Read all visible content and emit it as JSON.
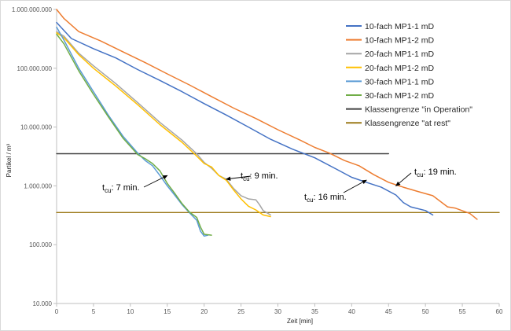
{
  "chart_data": {
    "type": "line",
    "xlabel": "Zeit [min]",
    "ylabel": "Partikel / m³",
    "xlim": [
      0,
      60
    ],
    "ylim": [
      10000,
      1000000000
    ],
    "yscale": "log",
    "x_ticks": [
      0,
      5,
      10,
      15,
      20,
      25,
      30,
      35,
      40,
      45,
      50,
      55,
      60
    ],
    "x_tick_labels": [
      "0",
      "5",
      "10",
      "15",
      "20",
      "25",
      "30",
      "35",
      "40",
      "45",
      "50",
      "55",
      "60"
    ],
    "y_ticks": [
      10000,
      100000,
      1000000,
      10000000,
      100000000,
      1000000000
    ],
    "y_tick_labels": [
      "10.000",
      "100.000",
      "1.000.000",
      "10.000.000",
      "100.000.000",
      "1.000.000.000"
    ],
    "grid": false,
    "legend_position": "top-right",
    "series": [
      {
        "name": "10-fach MP1-1 mD",
        "color": "#4472c4",
        "points": [
          [
            0,
            600000000
          ],
          [
            2,
            320000000
          ],
          [
            5,
            215000000
          ],
          [
            8,
            150000000
          ],
          [
            11,
            95000000
          ],
          [
            14,
            62000000
          ],
          [
            17,
            40000000
          ],
          [
            20,
            25000000
          ],
          [
            23,
            16000000
          ],
          [
            26,
            10000000
          ],
          [
            29,
            6200000
          ],
          [
            32,
            4200000
          ],
          [
            35,
            3000000
          ],
          [
            38,
            1900000
          ],
          [
            40,
            1400000
          ],
          [
            42,
            1150000
          ],
          [
            44,
            950000
          ],
          [
            46,
            700000
          ],
          [
            47,
            520000
          ],
          [
            48,
            440000
          ],
          [
            50,
            380000
          ],
          [
            51,
            320000
          ]
        ]
      },
      {
        "name": "10-fach MP1-2 mD",
        "color": "#ed7d31",
        "points": [
          [
            0,
            1000000000
          ],
          [
            1,
            700000000
          ],
          [
            3,
            420000000
          ],
          [
            6,
            290000000
          ],
          [
            9,
            190000000
          ],
          [
            12,
            125000000
          ],
          [
            15,
            80000000
          ],
          [
            18,
            52000000
          ],
          [
            21,
            33000000
          ],
          [
            24,
            21000000
          ],
          [
            27,
            14000000
          ],
          [
            30,
            9000000
          ],
          [
            33,
            6000000
          ],
          [
            35,
            4500000
          ],
          [
            37,
            3600000
          ],
          [
            39,
            2700000
          ],
          [
            41,
            2200000
          ],
          [
            43,
            1550000
          ],
          [
            45,
            1150000
          ],
          [
            47,
            950000
          ],
          [
            49,
            800000
          ],
          [
            51,
            680000
          ],
          [
            53,
            440000
          ],
          [
            54,
            420000
          ],
          [
            56,
            340000
          ],
          [
            57,
            270000
          ]
        ]
      },
      {
        "name": "20-fach MP1-1 mD",
        "color": "#a5a5a5",
        "points": [
          [
            0,
            420000000
          ],
          [
            1,
            350000000
          ],
          [
            3,
            180000000
          ],
          [
            5,
            110000000
          ],
          [
            8,
            55000000
          ],
          [
            11,
            26000000
          ],
          [
            14,
            12000000
          ],
          [
            17,
            6000000
          ],
          [
            19,
            3500000
          ],
          [
            20,
            2500000
          ],
          [
            21,
            2000000
          ],
          [
            22,
            1500000
          ],
          [
            23,
            1300000
          ],
          [
            24,
            900000
          ],
          [
            25,
            680000
          ],
          [
            26,
            600000
          ],
          [
            27,
            580000
          ],
          [
            27.5,
            480000
          ],
          [
            28,
            380000
          ],
          [
            29,
            320000
          ]
        ]
      },
      {
        "name": "20-fach MP1-2 mD",
        "color": "#ffc000",
        "points": [
          [
            0,
            400000000
          ],
          [
            1,
            330000000
          ],
          [
            3,
            170000000
          ],
          [
            5,
            100000000
          ],
          [
            8,
            50000000
          ],
          [
            11,
            24000000
          ],
          [
            14,
            11000000
          ],
          [
            17,
            5500000
          ],
          [
            19,
            3200000
          ],
          [
            20,
            2400000
          ],
          [
            21,
            2100000
          ],
          [
            22,
            1500000
          ],
          [
            23,
            1250000
          ],
          [
            24,
            850000
          ],
          [
            25,
            600000
          ],
          [
            26,
            450000
          ],
          [
            27,
            390000
          ],
          [
            28,
            320000
          ],
          [
            29,
            300000
          ]
        ]
      },
      {
        "name": "30-fach MP1-1 mD",
        "color": "#5b9bd5",
        "points": [
          [
            0,
            500000000
          ],
          [
            1,
            300000000
          ],
          [
            3,
            100000000
          ],
          [
            5,
            40000000
          ],
          [
            7,
            16000000
          ],
          [
            9,
            7000000
          ],
          [
            11,
            3600000
          ],
          [
            12,
            2700000
          ],
          [
            13,
            2200000
          ],
          [
            14,
            1500000
          ],
          [
            15,
            1000000
          ],
          [
            16,
            700000
          ],
          [
            17,
            480000
          ],
          [
            18,
            350000
          ],
          [
            19,
            260000
          ],
          [
            19.5,
            170000
          ],
          [
            20,
            140000
          ],
          [
            20.5,
            145000
          ]
        ]
      },
      {
        "name": "30-fach MP1-2 mD",
        "color": "#70ad47",
        "points": [
          [
            0,
            380000000
          ],
          [
            1,
            260000000
          ],
          [
            3,
            90000000
          ],
          [
            5,
            36000000
          ],
          [
            7,
            15000000
          ],
          [
            9,
            6500000
          ],
          [
            11,
            3400000
          ],
          [
            12,
            2900000
          ],
          [
            13,
            2400000
          ],
          [
            14,
            1800000
          ],
          [
            15,
            1100000
          ],
          [
            16,
            750000
          ],
          [
            17,
            500000
          ],
          [
            18,
            360000
          ],
          [
            19,
            290000
          ],
          [
            19.5,
            200000
          ],
          [
            20,
            150000
          ],
          [
            21,
            145000
          ]
        ]
      },
      {
        "name": "Klassengrenze \"in Operation\"",
        "color": "#404040",
        "points": [
          [
            0,
            3520000
          ],
          [
            45,
            3520000
          ]
        ]
      },
      {
        "name": "Klassengrenze \"at rest\"",
        "color": "#9c7a1a",
        "points": [
          [
            0,
            352000
          ],
          [
            60,
            352000
          ]
        ]
      }
    ],
    "annotations": [
      {
        "prefix": "t",
        "sub": "cu",
        "suffix": ": 7 min.",
        "arrow_to": [
          15,
          1500000
        ]
      },
      {
        "prefix": "t",
        "sub": "cu",
        "suffix": ": 9 min.",
        "arrow_to": [
          23,
          1300000
        ]
      },
      {
        "prefix": "t",
        "sub": "cu",
        "suffix": ": 16 min.",
        "arrow_to": [
          42,
          1250000
        ]
      },
      {
        "prefix": "t",
        "sub": "cu",
        "suffix": ": 19 min.",
        "arrow_to": [
          46,
          1000000
        ]
      }
    ]
  }
}
